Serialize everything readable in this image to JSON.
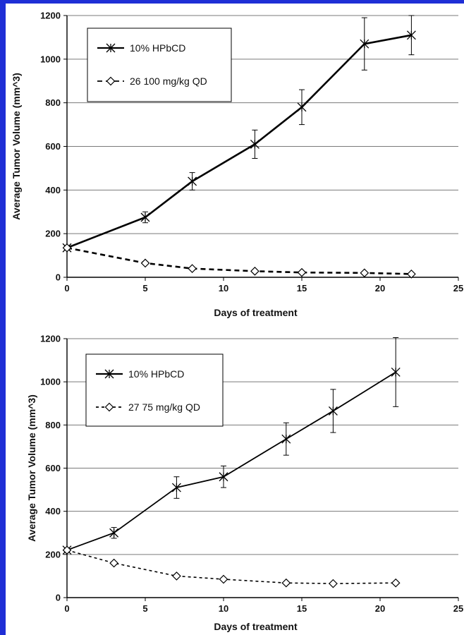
{
  "chart_data": [
    {
      "type": "line",
      "title": "",
      "xlabel": "Days of treatment",
      "ylabel": "Average Tumor Volume (mm^3)",
      "xlim": [
        0,
        25
      ],
      "ylim": [
        0,
        1200
      ],
      "xticks": [
        0,
        5,
        10,
        15,
        20,
        25
      ],
      "yticks": [
        0,
        200,
        400,
        600,
        800,
        1000,
        1200
      ],
      "grid": "horizontal",
      "legend_position": "top-left",
      "series": [
        {
          "name": "10% HPbCD",
          "style": "solid",
          "marker": "star",
          "color": "#000000",
          "x": [
            0,
            5,
            8,
            12,
            15,
            19,
            22
          ],
          "y": [
            135,
            275,
            440,
            610,
            780,
            1070,
            1110
          ],
          "err": [
            10,
            25,
            40,
            65,
            80,
            120,
            90
          ]
        },
        {
          "name": "26 100 mg/kg QD",
          "style": "dashed",
          "marker": "diamond",
          "color": "#000000",
          "x": [
            0,
            5,
            8,
            12,
            15,
            19,
            22
          ],
          "y": [
            135,
            65,
            40,
            28,
            22,
            20,
            15
          ],
          "err": [
            0,
            0,
            0,
            0,
            0,
            0,
            0
          ]
        }
      ]
    },
    {
      "type": "line",
      "title": "",
      "xlabel": "Days of treatment",
      "ylabel": "Average Tumor Volume (mm^3)",
      "xlim": [
        0,
        25
      ],
      "ylim": [
        0,
        1200
      ],
      "xticks": [
        0,
        5,
        10,
        15,
        20,
        25
      ],
      "yticks": [
        0,
        200,
        400,
        600,
        800,
        1000,
        1200
      ],
      "grid": "horizontal",
      "legend_position": "top-left",
      "series": [
        {
          "name": "10% HPbCD",
          "style": "solid",
          "marker": "star",
          "color": "#000000",
          "x": [
            0,
            3,
            7,
            10,
            14,
            17,
            21
          ],
          "y": [
            220,
            300,
            510,
            560,
            735,
            865,
            1045
          ],
          "err": [
            10,
            25,
            50,
            50,
            75,
            100,
            160
          ]
        },
        {
          "name": "27 75 mg/kg QD",
          "style": "dotted",
          "marker": "diamond",
          "color": "#000000",
          "x": [
            0,
            3,
            7,
            10,
            14,
            17,
            21
          ],
          "y": [
            220,
            160,
            100,
            85,
            68,
            65,
            68
          ],
          "err": [
            0,
            0,
            0,
            0,
            0,
            0,
            0
          ]
        }
      ]
    }
  ]
}
